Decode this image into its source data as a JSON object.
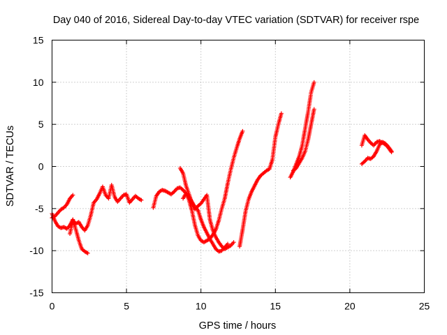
{
  "chart_data": {
    "type": "scatter",
    "title": "Day 040 of 2016, Sidereal Day-to-day VTEC variation (SDTVAR) for receiver rspe",
    "xlabel": "GPS time / hours",
    "ylabel": "SDTVAR / TECUs",
    "xlim": [
      0,
      25
    ],
    "ylim": [
      -15,
      15
    ],
    "x_ticks": [
      "0",
      "5",
      "10",
      "15",
      "20",
      "25"
    ],
    "y_ticks": [
      "-15",
      "-10",
      "-5",
      "0",
      "5",
      "10",
      "15"
    ],
    "grid": true,
    "marker": "plus",
    "color": "#ff0000",
    "series": [
      {
        "x": [
          0.0,
          0.2,
          0.4,
          0.6,
          0.8,
          1.0,
          1.2,
          1.4,
          1.6,
          1.8,
          2.0,
          2.2,
          2.4
        ],
        "y": [
          -5.6,
          -6.5,
          -7.1,
          -7.3,
          -7.2,
          -7.4,
          -7.0,
          -6.3,
          -7.5,
          -8.8,
          -9.8,
          -10.1,
          -10.3
        ]
      },
      {
        "x": [
          0.0,
          0.2,
          0.4,
          0.6,
          0.8,
          1.0,
          1.2,
          1.4
        ],
        "y": [
          -6.1,
          -5.9,
          -5.5,
          -5.1,
          -4.9,
          -4.5,
          -3.8,
          -3.4
        ]
      },
      {
        "x": [
          1.2,
          1.4,
          1.6,
          1.8,
          2.0,
          2.2,
          2.4,
          2.6,
          2.8,
          3.0,
          3.2,
          3.4,
          3.6,
          3.8,
          4.0,
          4.2,
          4.4,
          4.6,
          4.8,
          5.0,
          5.2,
          5.4,
          5.6,
          5.8,
          6.0
        ],
        "y": [
          -8.0,
          -6.4,
          -6.8,
          -6.6,
          -7.2,
          -7.6,
          -7.0,
          -5.8,
          -4.3,
          -3.9,
          -3.2,
          -2.4,
          -3.4,
          -3.8,
          -2.2,
          -3.6,
          -4.2,
          -3.8,
          -3.4,
          -3.3,
          -4.3,
          -3.9,
          -3.5,
          -3.8,
          -4.0
        ]
      },
      {
        "x": [
          6.8,
          7.0,
          7.2,
          7.4,
          7.6,
          7.8,
          8.0,
          8.2,
          8.4,
          8.6,
          8.8,
          9.0,
          9.2,
          9.4,
          9.6,
          9.8,
          10.0,
          10.2,
          10.4,
          10.6,
          10.8,
          11.0,
          11.2,
          11.4,
          11.6,
          11.8,
          12.0,
          12.2,
          12.4,
          12.6,
          12.8
        ],
        "y": [
          -4.9,
          -3.5,
          -3.0,
          -2.8,
          -2.9,
          -3.1,
          -3.3,
          -3.0,
          -2.6,
          -2.5,
          -2.8,
          -3.2,
          -4.0,
          -5.3,
          -7.0,
          -8.2,
          -8.8,
          -9.0,
          -8.8,
          -8.6,
          -8.1,
          -7.5,
          -6.4,
          -5.0,
          -3.8,
          -2.0,
          -0.4,
          1.0,
          2.2,
          3.3,
          4.2
        ]
      },
      {
        "x": [
          8.6,
          8.8,
          9.0,
          9.2,
          9.4,
          9.6,
          9.8,
          10.0,
          10.2,
          10.4,
          10.6,
          10.8,
          11.0,
          11.2,
          11.4,
          11.6,
          11.8,
          12.0,
          12.2
        ],
        "y": [
          -0.2,
          -0.8,
          -2.3,
          -3.3,
          -4.4,
          -5.1,
          -4.7,
          -4.4,
          -3.9,
          -3.4,
          -6.3,
          -7.6,
          -8.4,
          -9.0,
          -9.5,
          -9.8,
          -9.6,
          -9.4,
          -9.0
        ]
      },
      {
        "x": [
          8.8,
          9.0,
          9.2,
          9.4,
          9.6,
          9.8,
          10.0,
          10.2,
          10.4,
          10.6,
          10.8,
          11.0,
          11.2,
          11.4,
          11.6,
          11.8
        ],
        "y": [
          -3.8,
          -3.2,
          -3.6,
          -4.2,
          -4.8,
          -5.2,
          -6.3,
          -7.2,
          -7.9,
          -8.6,
          -9.2,
          -9.8,
          -10.1,
          -10.0,
          -9.6,
          -9.2
        ]
      },
      {
        "x": [
          12.6,
          12.8,
          13.0,
          13.2,
          13.4,
          13.6,
          13.8,
          14.0,
          14.2,
          14.4,
          14.6,
          14.8,
          15.0,
          15.2,
          15.4
        ],
        "y": [
          -9.5,
          -7.5,
          -5.3,
          -3.9,
          -3.0,
          -2.3,
          -1.6,
          -1.1,
          -0.8,
          -0.5,
          -0.3,
          0.8,
          3.5,
          5.0,
          6.3
        ]
      },
      {
        "x": [
          16.0,
          16.2,
          16.4,
          16.6,
          16.8,
          17.0,
          17.2,
          17.4,
          17.6
        ],
        "y": [
          -1.3,
          -0.6,
          0.3,
          1.2,
          2.5,
          4.5,
          6.5,
          8.8,
          10.0
        ]
      },
      {
        "x": [
          16.2,
          16.4,
          16.6,
          16.8,
          17.0,
          17.2,
          17.4,
          17.6
        ],
        "y": [
          -0.5,
          -0.2,
          0.4,
          1.0,
          1.8,
          3.2,
          5.0,
          6.8
        ]
      },
      {
        "x": [
          20.8,
          21.0,
          21.2,
          21.4,
          21.6,
          21.8,
          22.0,
          22.2,
          22.4,
          22.6,
          22.8
        ],
        "y": [
          0.3,
          0.6,
          1.0,
          0.9,
          1.2,
          1.8,
          2.6,
          2.9,
          2.7,
          2.3,
          1.8
        ]
      },
      {
        "x": [
          20.8,
          21.0,
          21.2,
          21.4,
          21.6,
          21.8,
          22.0,
          22.2,
          22.4,
          22.6,
          22.8
        ],
        "y": [
          2.5,
          3.7,
          3.2,
          2.8,
          2.5,
          2.9,
          3.0,
          2.8,
          2.6,
          2.2,
          1.7
        ]
      }
    ]
  }
}
